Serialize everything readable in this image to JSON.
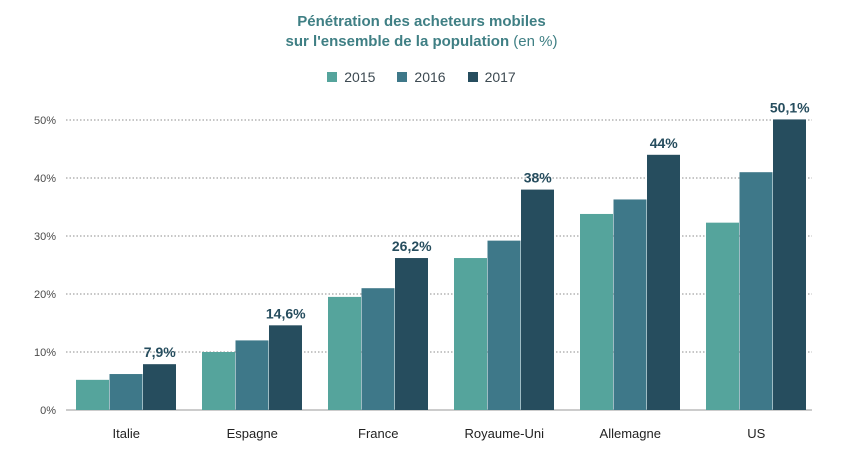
{
  "chart_data": {
    "type": "bar",
    "title_line1": "Pénétration des acheteurs mobiles",
    "title_line2_bold": "sur l'ensemble de la population",
    "title_line2_normal": "(en %)",
    "categories": [
      "Italie",
      "Espagne",
      "France",
      "Royaume-Uni",
      "Allemagne",
      "US"
    ],
    "series": [
      {
        "name": "2015",
        "color": "#55a49c",
        "values": [
          5.2,
          10.0,
          19.5,
          26.2,
          33.8,
          32.3
        ]
      },
      {
        "name": "2016",
        "color": "#3e7889",
        "values": [
          6.2,
          12.0,
          21.0,
          29.2,
          36.3,
          41.0
        ]
      },
      {
        "name": "2017",
        "color": "#264d5e",
        "values": [
          7.9,
          14.6,
          26.2,
          38.0,
          44.0,
          50.1
        ]
      }
    ],
    "data_labels": [
      "7,9%",
      "14,6%",
      "26,2%",
      "38%",
      "44%",
      "50,1%"
    ],
    "y_ticks": [
      0,
      10,
      20,
      30,
      40,
      50
    ],
    "y_tick_labels": [
      "0%",
      "10%",
      "20%",
      "30%",
      "40%",
      "50%"
    ],
    "ylim": [
      0,
      50
    ],
    "grid": true,
    "legend_position": "top-center"
  }
}
